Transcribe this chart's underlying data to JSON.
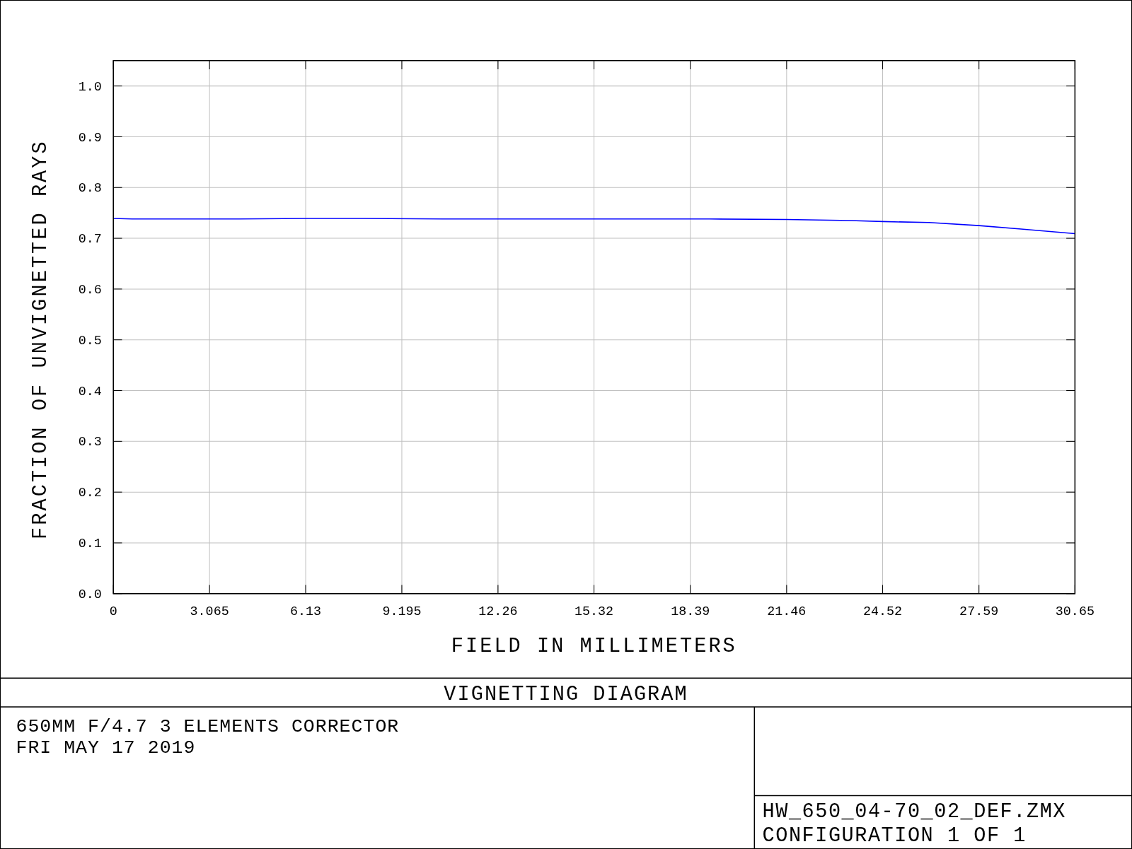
{
  "chart_data": {
    "type": "line",
    "title": "VIGNETTING DIAGRAM",
    "xlabel": "FIELD IN MILLIMETERS",
    "ylabel": "FRACTION OF UNVIGNETTED RAYS",
    "annotations": [
      "650MM F/4.7  3 ELEMENTS CORRECTOR",
      "FRI MAY 17 2019",
      "HW_650_04-70_02_DEF.ZMX",
      "CONFIGURATION 1 OF 1"
    ],
    "series": [
      {
        "color": "#0000ff",
        "x": [
          0,
          0.6,
          2,
          4,
          6.13,
          8,
          10.5,
          13,
          16,
          19,
          21.46,
          22.5,
          23.5,
          24.52,
          26,
          27.59,
          29,
          30.65
        ],
        "values": [
          0.739,
          0.738,
          0.738,
          0.738,
          0.739,
          0.739,
          0.738,
          0.738,
          0.738,
          0.738,
          0.737,
          0.736,
          0.735,
          0.733,
          0.731,
          0.725,
          0.718,
          0.709
        ]
      }
    ],
    "xlim": [
      0,
      30.65
    ],
    "xticks": [
      0,
      3.065,
      6.13,
      9.195,
      12.26,
      15.32,
      18.39,
      21.46,
      24.52,
      27.59,
      30.65
    ],
    "ylim": [
      0,
      1.05
    ],
    "yticks": [
      {
        "value": 0,
        "label": "0.0"
      },
      0.1,
      0.2,
      0.3,
      0.4,
      0.5,
      0.6,
      0.7,
      0.8,
      0.9,
      {
        "value": 1,
        "label": "1.0"
      }
    ],
    "grid": true,
    "marker": "none",
    "line_style": "solid"
  }
}
